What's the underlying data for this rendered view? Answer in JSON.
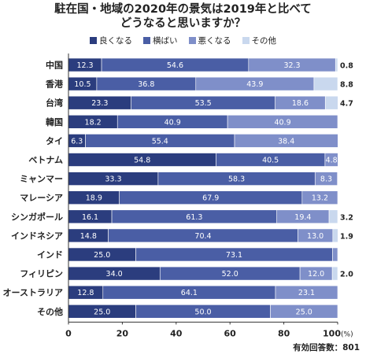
{
  "title_line1": "駐在国・地域の2020年の景気は2019年と比べて",
  "title_line2": "どうなると思いますか？",
  "note": "有効回答数：801",
  "x_unit": "(%)",
  "chart_data": {
    "type": "bar",
    "orientation": "horizontal",
    "stacked": true,
    "categories": [
      "中国",
      "香港",
      "台湾",
      "韓国",
      "タイ",
      "ベトナム",
      "ミャンマー",
      "マレーシア",
      "シンガポール",
      "インドネシア",
      "インド",
      "フィリピン",
      "オーストラリア",
      "その他"
    ],
    "series": [
      {
        "name": "良くなる",
        "color": "#2b3d7e",
        "values": [
          12.3,
          10.5,
          23.3,
          18.2,
          6.3,
          54.8,
          33.3,
          18.9,
          16.1,
          14.8,
          25.0,
          34.0,
          12.8,
          25.0
        ]
      },
      {
        "name": "横ばい",
        "color": "#4a5ea5",
        "values": [
          54.6,
          36.8,
          53.5,
          40.9,
          55.4,
          40.5,
          58.3,
          67.9,
          61.3,
          70.4,
          73.1,
          52.0,
          64.1,
          50.0
        ]
      },
      {
        "name": "悪くなる",
        "color": "#7f8fc9",
        "values": [
          32.3,
          43.9,
          18.6,
          40.9,
          38.4,
          4.8,
          8.3,
          13.2,
          19.4,
          13.0,
          1.9,
          12.0,
          23.1,
          25.0
        ]
      },
      {
        "name": "その他",
        "color": "#c9d8ee",
        "values": [
          0.8,
          8.8,
          4.7,
          0,
          0,
          0,
          0,
          0,
          3.2,
          1.9,
          0,
          2.0,
          0,
          0
        ]
      }
    ],
    "xlim": [
      0,
      100
    ],
    "xticks": [
      "0",
      "20",
      "40",
      "60",
      "80",
      "100"
    ],
    "grid": false,
    "legend": "top"
  }
}
